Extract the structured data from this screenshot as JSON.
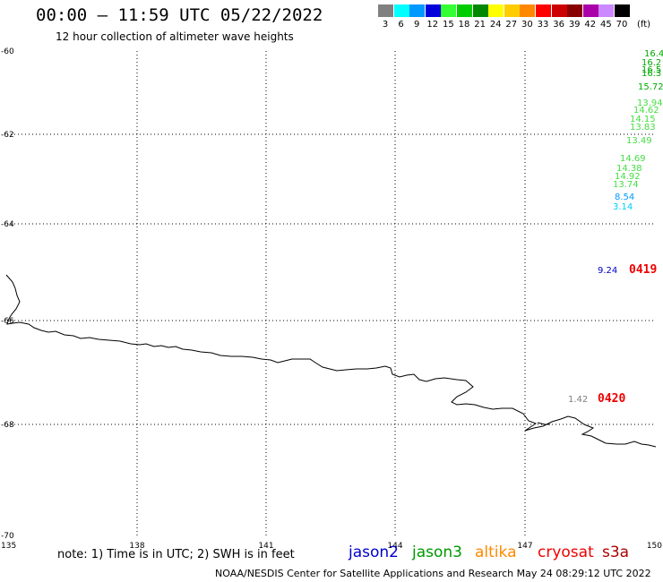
{
  "header": {
    "title": "00:00 – 11:59 UTC 05/22/2022",
    "subtitle": "12 hour collection of altimeter wave heights"
  },
  "legend": {
    "unit": "(ft)",
    "bins": [
      {
        "color": "#808080",
        "label": "3"
      },
      {
        "color": "#00ffff",
        "label": "6"
      },
      {
        "color": "#0099ff",
        "label": "9"
      },
      {
        "color": "#0000dd",
        "label": "12"
      },
      {
        "color": "#33ff33",
        "label": "15"
      },
      {
        "color": "#00cc00",
        "label": "18"
      },
      {
        "color": "#008800",
        "label": "21"
      },
      {
        "color": "#ffff00",
        "label": "24"
      },
      {
        "color": "#ffcc00",
        "label": "27"
      },
      {
        "color": "#ff8800",
        "label": "30"
      },
      {
        "color": "#ff0000",
        "label": "33"
      },
      {
        "color": "#cc0000",
        "label": "36"
      },
      {
        "color": "#880000",
        "label": "39"
      },
      {
        "color": "#aa00aa",
        "label": "42"
      },
      {
        "color": "#cc88ff",
        "label": "45"
      },
      {
        "color": "#000000",
        "label": "70"
      }
    ]
  },
  "axes": {
    "lat_labels": [
      "-60",
      "-62",
      "-64",
      "-66",
      "-68",
      "-70"
    ],
    "lon_labels": [
      "135",
      "138",
      "141",
      "144",
      "147",
      "150"
    ],
    "lat_values": [
      -60,
      -62,
      -64,
      -66,
      -68,
      -70
    ],
    "lon_values": [
      135,
      138,
      141,
      144,
      147,
      150
    ]
  },
  "wave_readings": [
    {
      "value": "16.4",
      "color": "#00aa00"
    },
    {
      "value": "16.2",
      "color": "#00aa00"
    },
    {
      "value": "16.5",
      "color": "#00aa00"
    },
    {
      "value": "16.3",
      "color": "#00aa00"
    },
    {
      "value": "15.72",
      "color": "#00aa00"
    },
    {
      "value": "13.94",
      "color": "#44dd44"
    },
    {
      "value": "14.62",
      "color": "#44dd44"
    },
    {
      "value": "14.15",
      "color": "#44dd44"
    },
    {
      "value": "13.83",
      "color": "#44dd44"
    },
    {
      "value": "13.49",
      "color": "#44dd44"
    },
    {
      "value": "14.69",
      "color": "#44dd44"
    },
    {
      "value": "14.38",
      "color": "#44dd44"
    },
    {
      "value": "14.92",
      "color": "#44dd44"
    },
    {
      "value": "13.74",
      "color": "#44dd44"
    },
    {
      "value": "8.54",
      "color": "#0099ff"
    },
    {
      "value": "3.14",
      "color": "#00ccff"
    },
    {
      "value": "9.24",
      "color": "#0000cc"
    },
    {
      "value": "1.42",
      "color": "#808080"
    }
  ],
  "pass_times": [
    {
      "label": "0419",
      "color": "#ee0000"
    },
    {
      "label": "0420",
      "color": "#ee0000"
    }
  ],
  "footer": {
    "note": "note: 1) Time is in UTC; 2) SWH is in feet",
    "satellites": [
      {
        "name": "jason2",
        "color": "#0000cc"
      },
      {
        "name": "jason3",
        "color": "#009900"
      },
      {
        "name": "altika",
        "color": "#ff8800"
      },
      {
        "name": "cryosat",
        "color": "#ee0000"
      },
      {
        "name": "s3a",
        "color": "#aa0000"
      }
    ],
    "credit": "NOAA/NESDIS Center for Satellite Applications and Research    May 24 08:29:12 UTC 2022"
  }
}
